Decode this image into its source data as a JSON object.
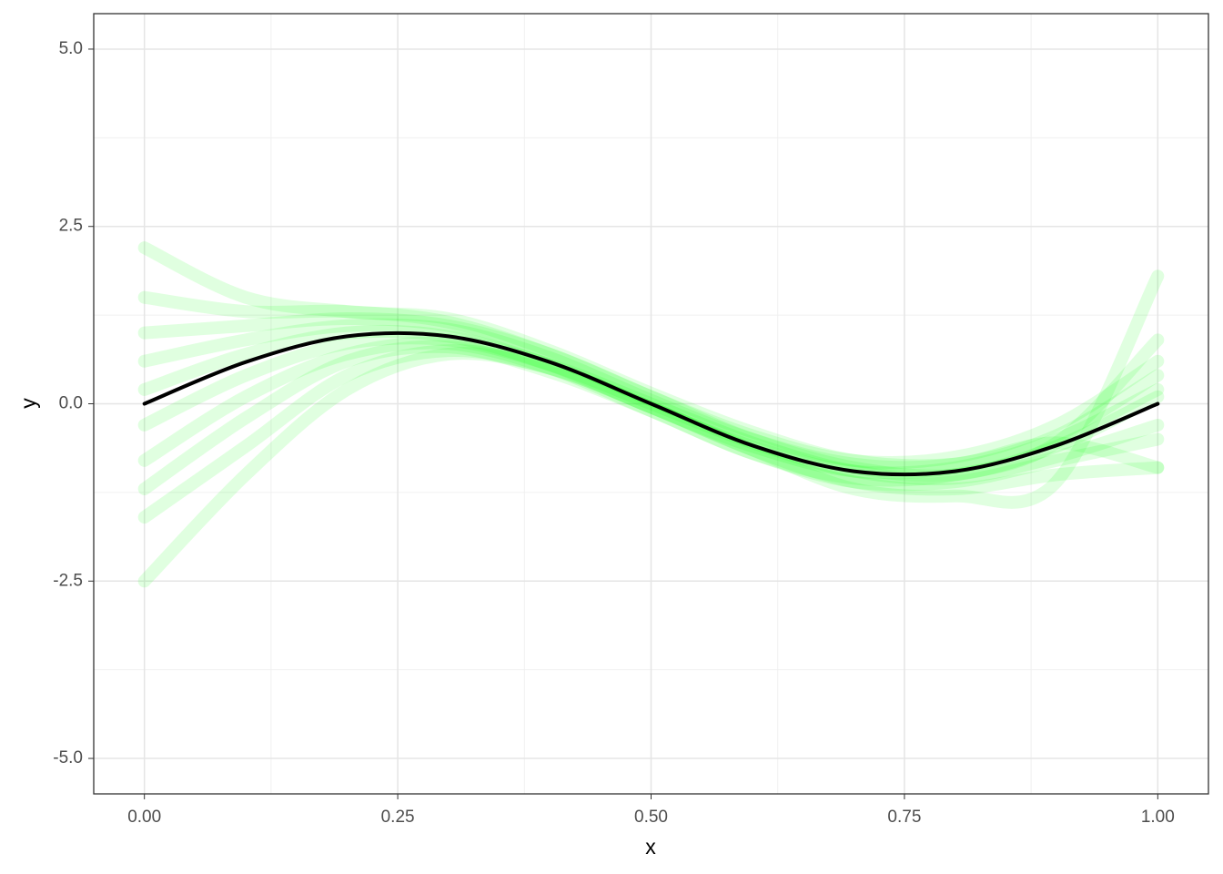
{
  "chart_data": {
    "type": "line",
    "x_label": "x",
    "y_label": "y",
    "x": [
      0,
      0.1,
      0.2,
      0.3,
      0.4,
      0.5,
      0.6,
      0.7,
      0.8,
      0.9,
      1
    ],
    "series": [
      {
        "color": "#00ff00",
        "values": [
          1.5,
          1.3,
          1.3,
          1.15,
          0.7,
          0.1,
          -0.45,
          -0.8,
          -0.75,
          -0.3,
          0.6
        ]
      },
      {
        "color": "#00ff00",
        "values": [
          -1.6,
          -0.6,
          0.4,
          0.75,
          0.5,
          -0.05,
          -0.65,
          -1.1,
          -1.2,
          -1.0,
          -0.9
        ]
      },
      {
        "color": "#00ff00",
        "values": [
          0.6,
          0.9,
          1.1,
          1.05,
          0.65,
          0.05,
          -0.5,
          -0.85,
          -0.85,
          -0.45,
          0.4
        ]
      },
      {
        "color": "#00ff00",
        "values": [
          -0.8,
          0.1,
          0.7,
          0.85,
          0.5,
          -0.1,
          -0.7,
          -1.1,
          -1.1,
          -0.8,
          -0.5
        ]
      },
      {
        "color": "#00ff00",
        "values": [
          0.2,
          0.7,
          1.0,
          0.95,
          0.55,
          -0.05,
          -0.6,
          -0.95,
          -0.9,
          -0.5,
          0.2
        ]
      },
      {
        "color": "#00ff00",
        "values": [
          -0.3,
          0.4,
          0.85,
          0.9,
          0.55,
          0,
          -0.55,
          -0.95,
          -1.05,
          -0.75,
          -0.3
        ]
      },
      {
        "color": "#00ff00",
        "values": [
          1.0,
          1.1,
          1.2,
          1.1,
          0.7,
          0.1,
          -0.5,
          -0.9,
          -1.0,
          -0.6,
          0.1
        ]
      },
      {
        "color": "#00ff00",
        "values": [
          -1.2,
          -0.2,
          0.6,
          0.8,
          0.45,
          -0.1,
          -0.7,
          -1.05,
          -1.0,
          -0.55,
          0.9
        ]
      },
      {
        "color": "#00ff00",
        "values": [
          2.2,
          1.5,
          1.3,
          1.2,
          0.75,
          0.15,
          -0.4,
          -0.8,
          -0.85,
          -0.55,
          -0.9
        ]
      },
      {
        "color": "#00ff00",
        "values": [
          -2.5,
          -1.0,
          0.2,
          0.7,
          0.5,
          -0.05,
          -0.65,
          -1.2,
          -1.3,
          -1.1,
          1.8
        ]
      },
      {
        "color": "#000000",
        "values": [
          0,
          0.588,
          0.951,
          0.951,
          0.588,
          0,
          -0.588,
          -0.951,
          -0.951,
          -0.588,
          0
        ]
      }
    ],
    "xlim": [
      -0.05,
      1.05
    ],
    "ylim": [
      -5.5,
      5.5
    ],
    "xticks": [
      {
        "value": 0,
        "label": "0.00"
      },
      {
        "value": 0.25,
        "label": "0.25"
      },
      {
        "value": 0.5,
        "label": "0.50"
      },
      {
        "value": 0.75,
        "label": "0.75"
      },
      {
        "value": 1,
        "label": "1.00"
      }
    ],
    "yticks": [
      {
        "value": -5,
        "label": "-5.0"
      },
      {
        "value": -2.5,
        "label": "-2.5"
      },
      {
        "value": 0,
        "label": "0.0"
      },
      {
        "value": 2.5,
        "label": "2.5"
      },
      {
        "value": 5,
        "label": "5.0"
      }
    ],
    "x_minor_grid": [
      0.125,
      0.375,
      0.625,
      0.875
    ],
    "y_minor_grid": [
      -3.75,
      -1.25,
      1.25,
      3.75
    ],
    "grid": true
  }
}
